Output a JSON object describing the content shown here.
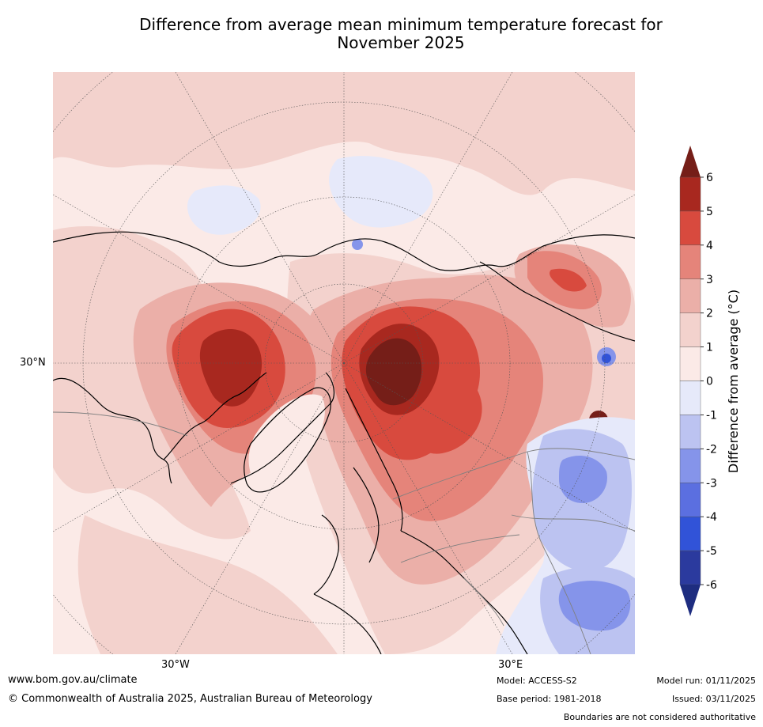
{
  "title": {
    "line1": "Difference from average mean minimum temperature forecast for",
    "line2": "November 2025"
  },
  "map": {
    "projection": "north-polar-stereographic",
    "region": "Northern Hemisphere (North America, Greenland, Europe, Arctic)",
    "lat_label": "30°N",
    "lon_labels": [
      "30°W",
      "30°E"
    ],
    "colors": {
      "minus6": "#2b3a9e",
      "minus5": "#3153d8",
      "minus4": "#5b6fe0",
      "minus3": "#8594ea",
      "minus2": "#bcc3f1",
      "minus1": "#e6e9fa",
      "plus0": "#fbeae7",
      "plus1": "#f3d2cd",
      "plus2": "#ebafa8",
      "plus3": "#e5847a",
      "plus4": "#d84a3e",
      "plus5": "#b22c24",
      "plus6": "#751e18",
      "land": "#000000",
      "borders": "#808080",
      "grid": "#555555"
    }
  },
  "colorbar": {
    "label": "Difference from average (°C)",
    "ticks": [
      "6",
      "5",
      "4",
      "3",
      "2",
      "1",
      "0",
      "-1",
      "-2",
      "-3",
      "-4",
      "-5",
      "-6"
    ],
    "bin_colors": [
      "#751e18",
      "#a8281f",
      "#d84a3e",
      "#e5847a",
      "#ebafa8",
      "#f3d2cd",
      "#fbeae7",
      "#e6e9fa",
      "#bcc3f1",
      "#8594ea",
      "#5b6fe0",
      "#3153d8",
      "#2b3a9e",
      "#1e2d80"
    ]
  },
  "footer": {
    "website": "www.bom.gov.au/climate",
    "copyright": "© Commonwealth of Australia 2025, Australian Bureau of Meteorology",
    "model": "Model: ACCESS-S2",
    "base_period": "Base period: 1981-2018",
    "model_run": "Model run: 01/11/2025",
    "issued": "Issued: 03/11/2025",
    "disclaimer": "Boundaries are not considered authoritative"
  }
}
